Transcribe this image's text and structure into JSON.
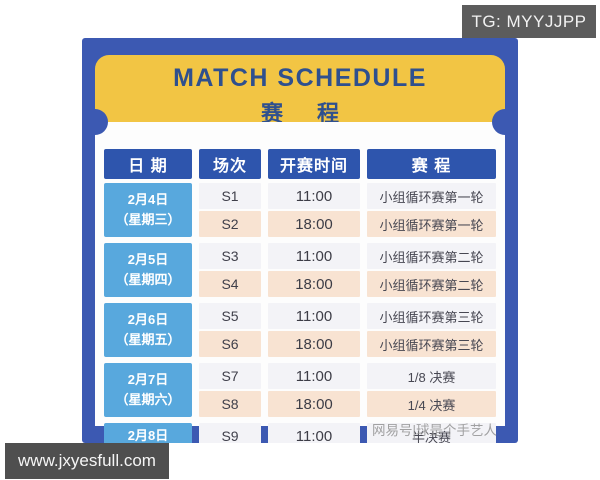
{
  "watermarks": {
    "tg": "TG: MYYJJPP",
    "site": "www.jxyesfull.com",
    "netease": "网易号|球是个手艺人"
  },
  "banner": {
    "title_en": "MATCH SCHEDULE",
    "title_zh": "赛 程"
  },
  "colors": {
    "poster_blue": "#3c59b2",
    "banner_yellow": "#f2c544",
    "banner_text": "#2f508e",
    "header_blue": "#2e55ad",
    "date_cell_blue": "#58a8dd",
    "row_light": "#f3f3f7",
    "row_peach": "#f8e3d2",
    "watermark_gray": "#5c5c5c"
  },
  "table": {
    "headers": [
      "日 期",
      "场次",
      "开赛时间",
      "赛 程"
    ],
    "groups": [
      {
        "date": "2月4日",
        "weekday": "（星期三）",
        "rows": [
          {
            "session": "S1",
            "time": "11:00",
            "event": "小组循环赛第一轮"
          },
          {
            "session": "S2",
            "time": "18:00",
            "event": "小组循环赛第一轮"
          }
        ]
      },
      {
        "date": "2月5日",
        "weekday": "（星期四）",
        "rows": [
          {
            "session": "S3",
            "time": "11:00",
            "event": "小组循环赛第二轮"
          },
          {
            "session": "S4",
            "time": "18:00",
            "event": "小组循环赛第二轮"
          }
        ]
      },
      {
        "date": "2月6日",
        "weekday": "（星期五）",
        "rows": [
          {
            "session": "S5",
            "time": "11:00",
            "event": "小组循环赛第三轮"
          },
          {
            "session": "S6",
            "time": "18:00",
            "event": "小组循环赛第三轮"
          }
        ]
      },
      {
        "date": "2月7日",
        "weekday": "（星期六）",
        "rows": [
          {
            "session": "S7",
            "time": "11:00",
            "event": "1/8 决赛"
          },
          {
            "session": "S8",
            "time": "18:00",
            "event": "1/4 决赛"
          }
        ]
      },
      {
        "date": "2月8日",
        "weekday": "",
        "rows": [
          {
            "session": "S9",
            "time": "11:00",
            "event": "半决赛"
          }
        ]
      }
    ]
  }
}
